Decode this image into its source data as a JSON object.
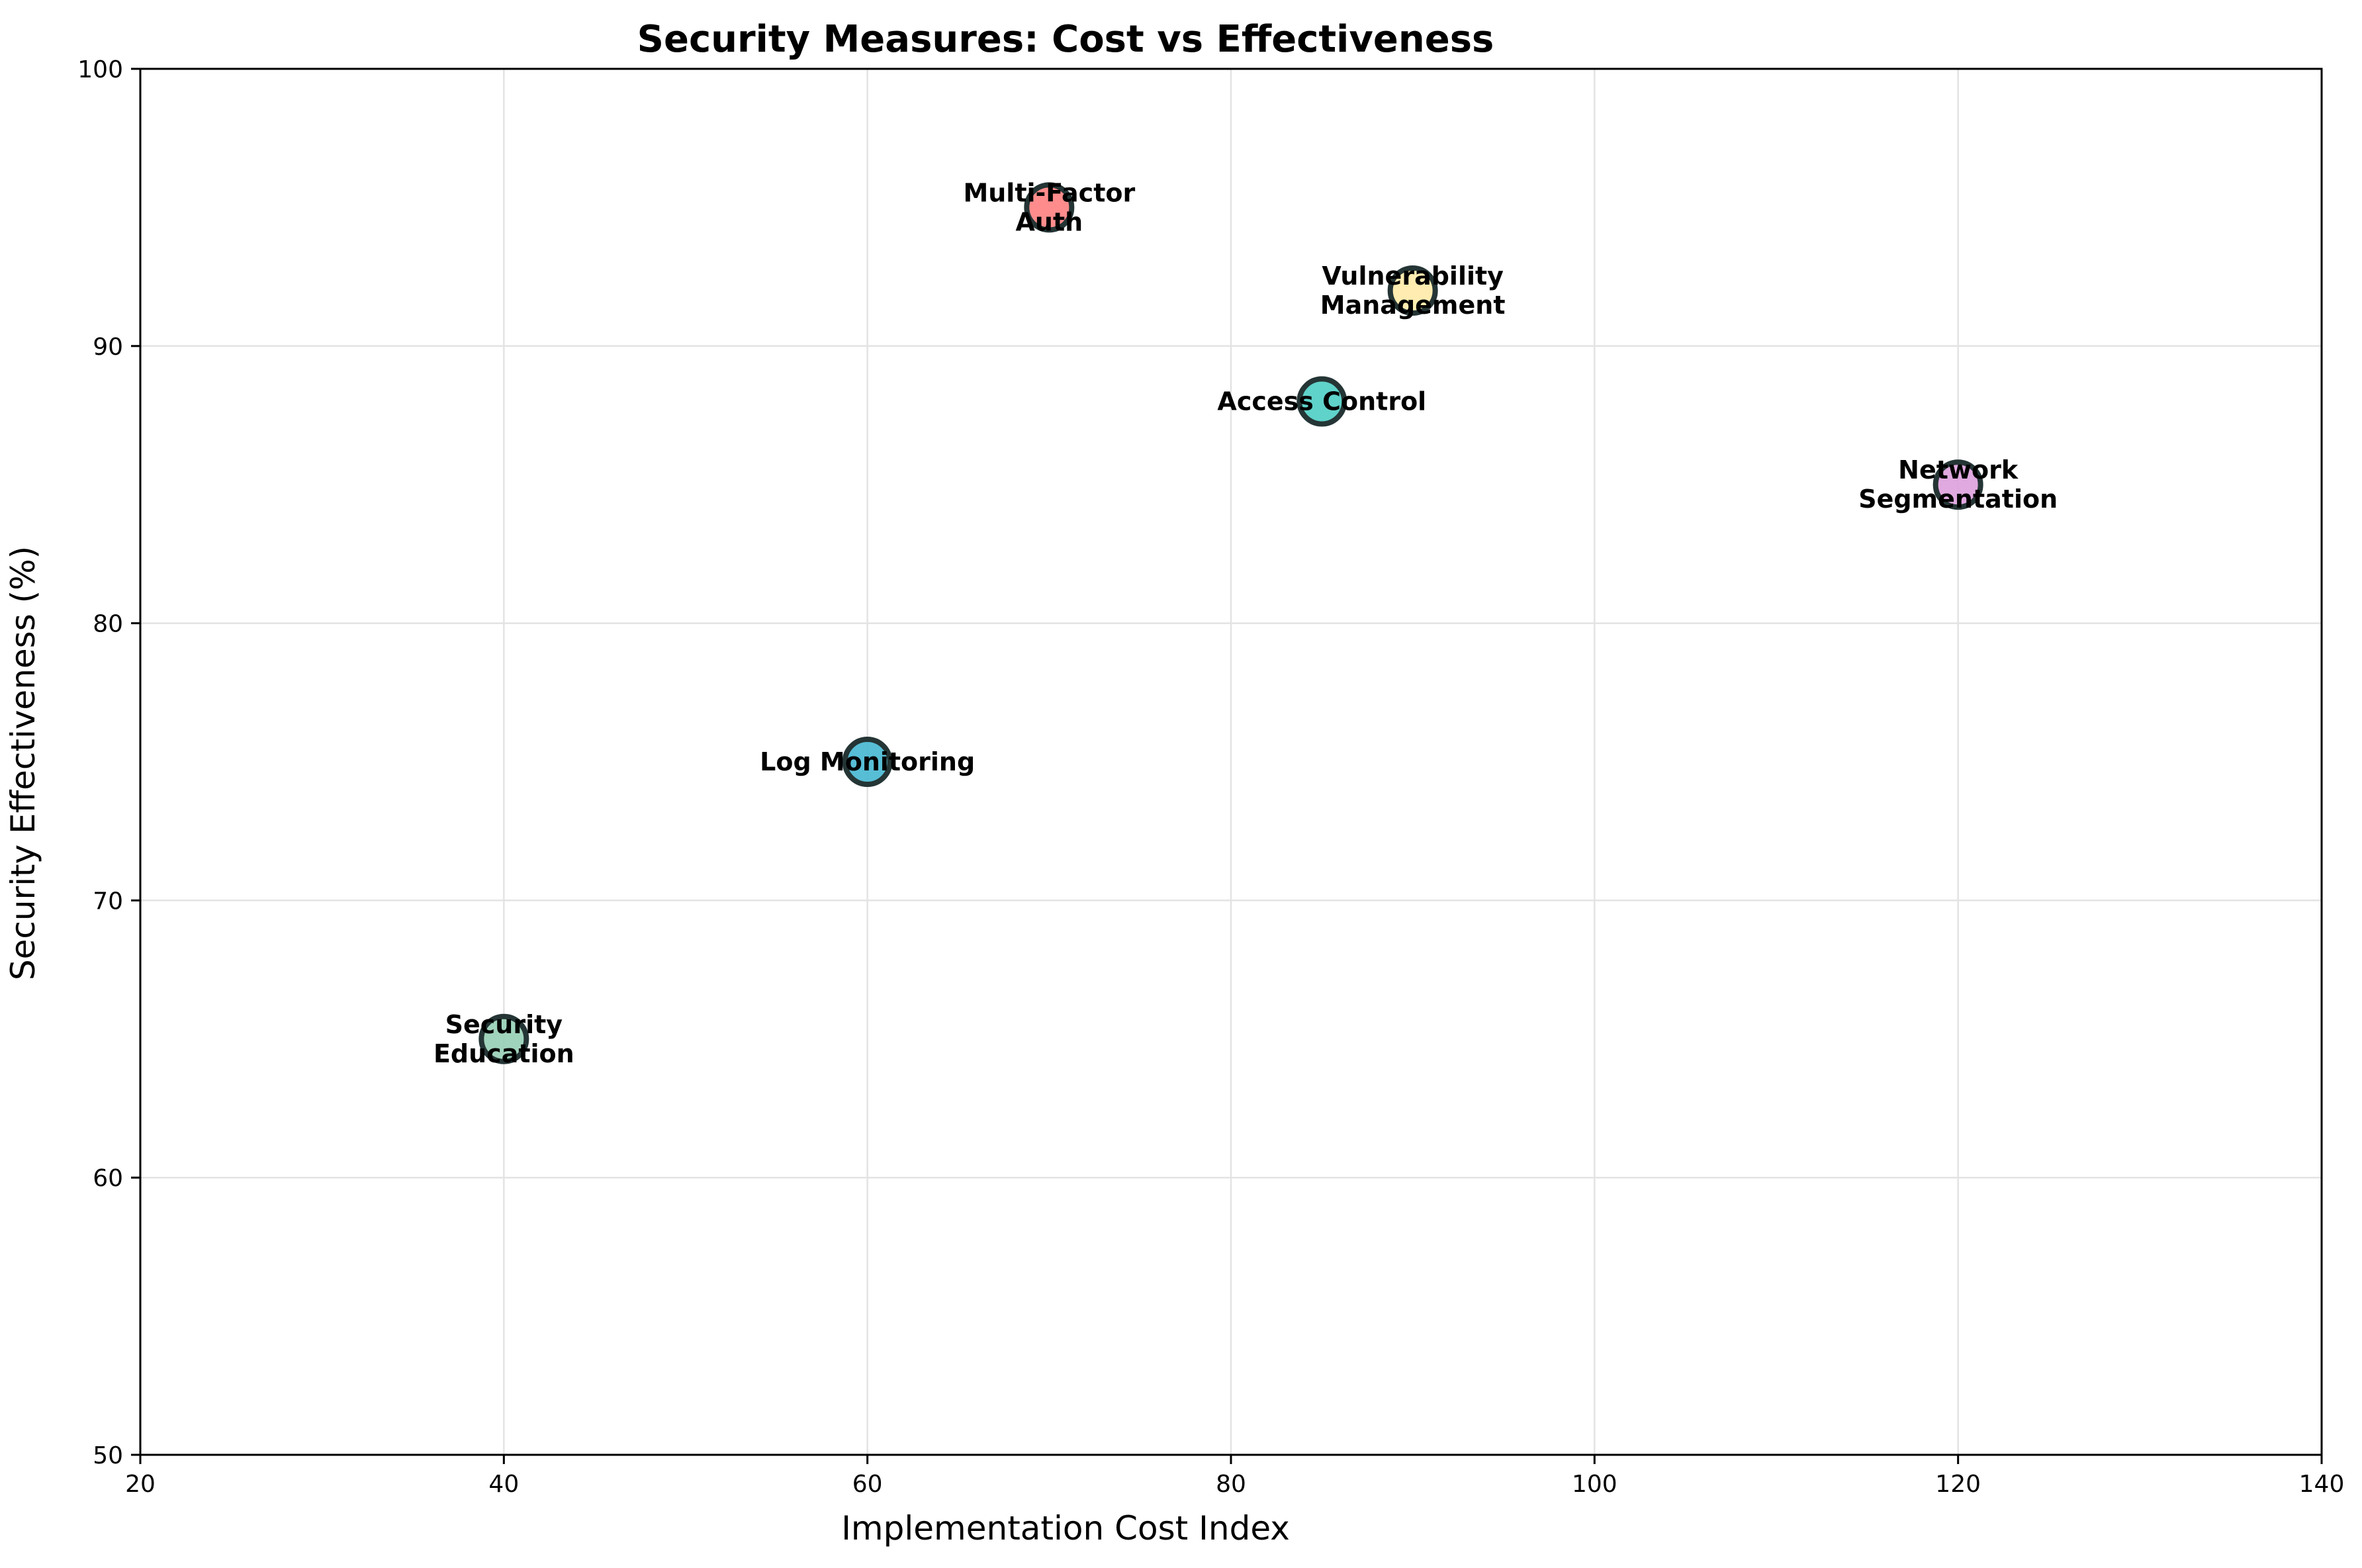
{
  "chart_data": {
    "type": "scatter",
    "title": "Security Measures: Cost vs Effectiveness",
    "xlabel": "Implementation Cost Index",
    "ylabel": "Security Effectiveness (%)",
    "xlim": [
      20,
      140
    ],
    "ylim": [
      50,
      100
    ],
    "xticks": [
      20,
      40,
      60,
      80,
      100,
      120,
      140
    ],
    "yticks": [
      50,
      60,
      70,
      80,
      90,
      100
    ],
    "grid": true,
    "points": [
      {
        "label": "Multi-Factor\nAuth",
        "x": 70,
        "y": 95,
        "color": "#ff7f7f"
      },
      {
        "label": "Vulnerability\nManagement",
        "x": 90,
        "y": 92,
        "color": "#ffeaa7"
      },
      {
        "label": "Access Control",
        "x": 85,
        "y": 88,
        "color": "#4ecdc4"
      },
      {
        "label": "Network\nSegmentation",
        "x": 120,
        "y": 85,
        "color": "#dda0dd"
      },
      {
        "label": "Log Monitoring",
        "x": 60,
        "y": 75,
        "color": "#45b7d1"
      },
      {
        "label": "Security\nEducation",
        "x": 40,
        "y": 65,
        "color": "#96ceb4"
      }
    ]
  }
}
